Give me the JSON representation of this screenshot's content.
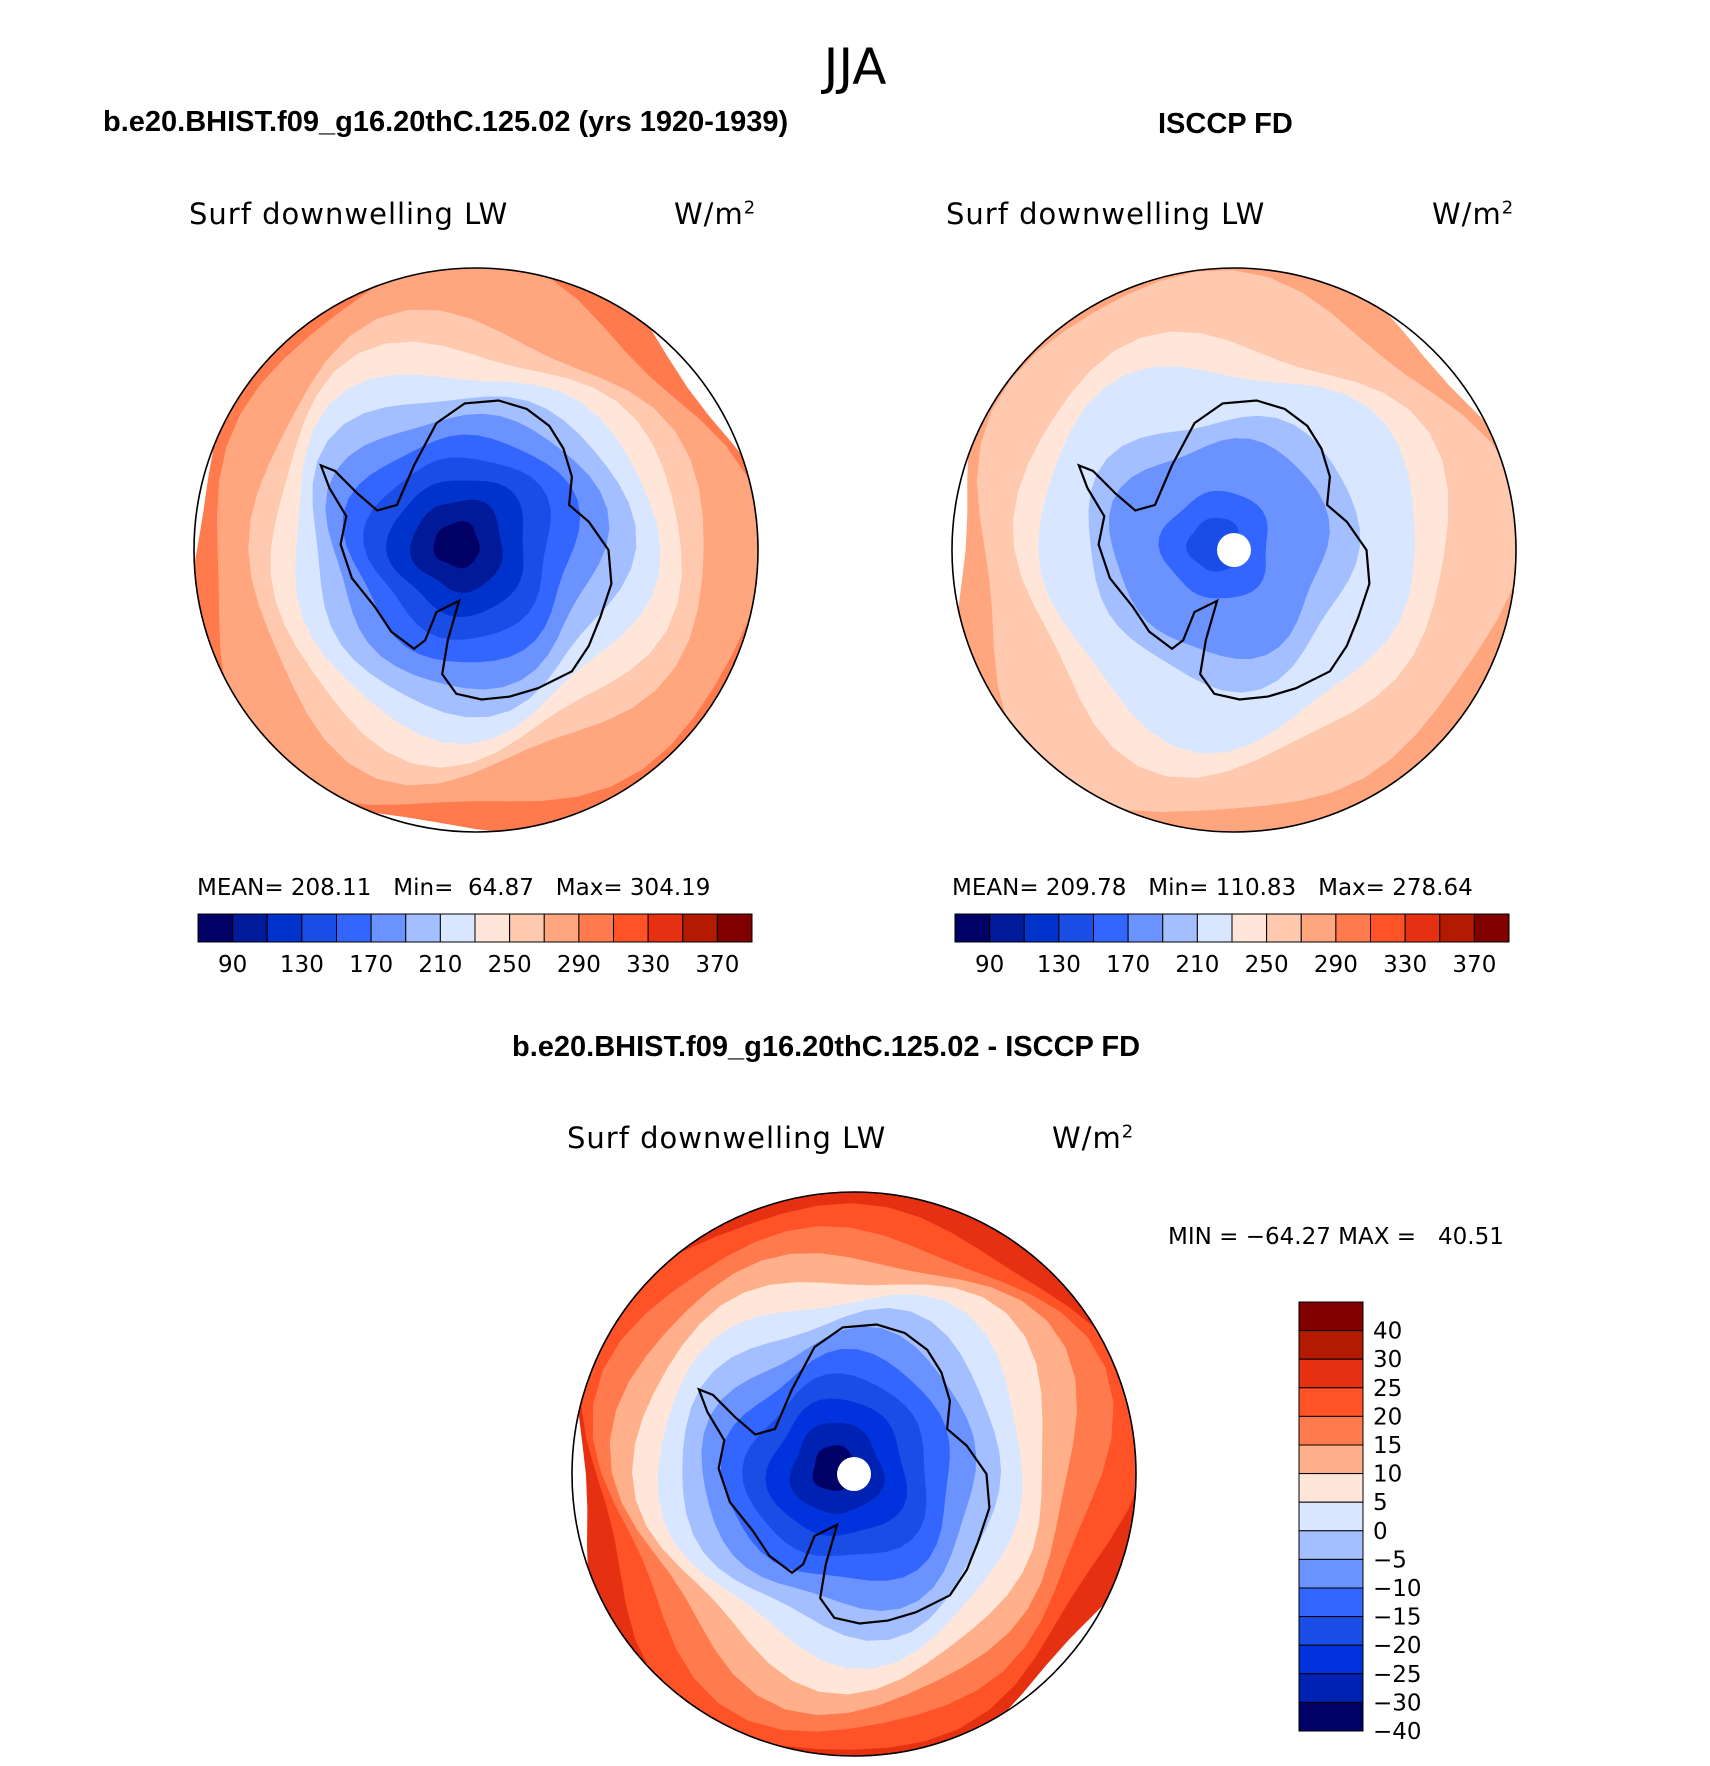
{
  "figure": {
    "season_title": "JJA",
    "colors": {
      "blue_red_17": [
        "#000066",
        "#001a99",
        "#0033cc",
        "#1a4de6",
        "#3366ff",
        "#6b93ff",
        "#a3bfff",
        "#d9e6ff",
        "#ffe6d9",
        "#ffc9b0",
        "#ffa67f",
        "#ff7a4d",
        "#ff5226",
        "#e63012",
        "#b31a00",
        "#800000"
      ],
      "diff_colors": [
        "#000066",
        "#0022b3",
        "#0033dd",
        "#1a4de6",
        "#3366ff",
        "#6b93ff",
        "#a3bfff",
        "#d9e6ff",
        "#ffe6d9",
        "#ffb08a",
        "#ff7a4d",
        "#ff5226",
        "#e63012",
        "#b31a00",
        "#800000"
      ],
      "coast": "#000000",
      "missing": "#ffffff"
    }
  },
  "panels": {
    "model": {
      "title": "b.e20.BHIST.f09_g16.20thC.125.02 (yrs 1920-1939)",
      "var_label": "Surf downwelling LW",
      "units": "W/m",
      "units_sup": "2",
      "stats": "MEAN= 208.11   Min=  64.87   Max= 304.19"
    },
    "obs": {
      "title": "ISCCP FD",
      "var_label": "Surf downwelling LW",
      "units": "W/m",
      "units_sup": "2",
      "stats": "MEAN= 209.78   Min= 110.83   Max= 278.64"
    },
    "diff": {
      "title": "b.e20.BHIST.f09_g16.20thC.125.02 - ISCCP FD",
      "var_label": "Surf downwelling LW",
      "units": "W/m",
      "units_sup": "2",
      "stats": "MIN = −64.27 MAX =   40.51"
    }
  },
  "chart_data": [
    {
      "type": "heatmap",
      "projection": "south polar stereographic",
      "title": "b.e20.BHIST.f09_g16.20thC.125.02 (yrs 1920-1939)",
      "variable": "Surf downwelling LW",
      "units": "W/m2",
      "mean": 208.11,
      "min": 64.87,
      "max": 304.19,
      "colorbar_labels": [
        "90",
        "130",
        "170",
        "210",
        "250",
        "290",
        "330",
        "370"
      ],
      "colorbar_levels": [
        80,
        90,
        110,
        130,
        150,
        170,
        190,
        210,
        230,
        250,
        270,
        290,
        310,
        330,
        350,
        370
      ],
      "ring_levels": [
        300,
        285,
        270,
        255,
        240,
        225,
        205,
        185,
        165,
        145,
        125,
        105,
        85
      ],
      "legend": "bottom"
    },
    {
      "type": "heatmap",
      "projection": "south polar stereographic",
      "title": "ISCCP FD",
      "variable": "Surf downwelling LW",
      "units": "W/m2",
      "mean": 209.78,
      "min": 110.83,
      "max": 278.64,
      "colorbar_labels": [
        "90",
        "130",
        "170",
        "210",
        "250",
        "290",
        "330",
        "370"
      ],
      "ring_levels": [
        275,
        262,
        250,
        238,
        225,
        212,
        198,
        185,
        170,
        158,
        145
      ],
      "legend": "bottom"
    },
    {
      "type": "heatmap",
      "projection": "south polar stereographic",
      "title": "b.e20.BHIST.f09_g16.20thC.125.02 - ISCCP FD",
      "variable": "Surf downwelling LW",
      "units": "W/m2",
      "min": -64.27,
      "max": 40.51,
      "colorbar_labels": [
        "40",
        "30",
        "25",
        "20",
        "15",
        "10",
        "5",
        "0",
        "−5",
        "−10",
        "−15",
        "−20",
        "−25",
        "−30",
        "−40"
      ],
      "ring_levels": [
        22,
        17,
        12,
        7,
        2,
        -3,
        -8,
        -14,
        -19,
        -24,
        -28,
        -33,
        -42
      ],
      "legend": "right"
    }
  ]
}
